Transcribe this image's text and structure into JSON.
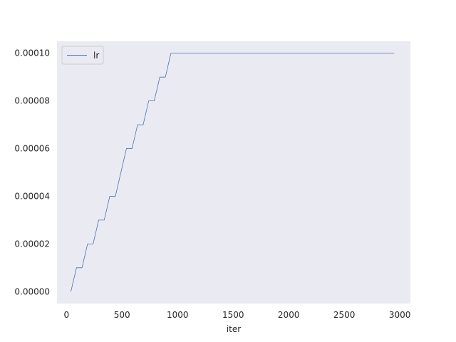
{
  "chart_data": {
    "type": "line",
    "title": "",
    "xlabel": "iter",
    "ylabel": "",
    "xlim": [
      -85,
      3095
    ],
    "ylim": [
      -5e-06,
      0.000105
    ],
    "xticks": [
      0,
      500,
      1000,
      1500,
      2000,
      2500,
      3000
    ],
    "xtick_labels": [
      "0",
      "500",
      "1000",
      "1500",
      "2000",
      "2500",
      "3000"
    ],
    "yticks": [
      0,
      2e-05,
      4e-05,
      6e-05,
      8e-05,
      0.0001
    ],
    "ytick_labels": [
      "0.00000",
      "0.00002",
      "0.00004",
      "0.00006",
      "0.00008",
      "0.00010"
    ],
    "grid": false,
    "background_color": "#eaeaf2",
    "legend": {
      "placement": "top-left",
      "entries": [
        "lr"
      ]
    },
    "series": [
      {
        "name": "lr",
        "color": "#4c72b0",
        "x": [
          40,
          90,
          140,
          190,
          240,
          290,
          340,
          390,
          440,
          490,
          540,
          590,
          640,
          690,
          740,
          790,
          840,
          890,
          940,
          2950
        ],
        "y": [
          0.0,
          1e-05,
          1e-05,
          2e-05,
          2e-05,
          3e-05,
          3e-05,
          4e-05,
          4e-05,
          5e-05,
          6e-05,
          6e-05,
          7e-05,
          7e-05,
          8e-05,
          8e-05,
          9e-05,
          9e-05,
          0.0001,
          0.0001
        ]
      }
    ]
  }
}
